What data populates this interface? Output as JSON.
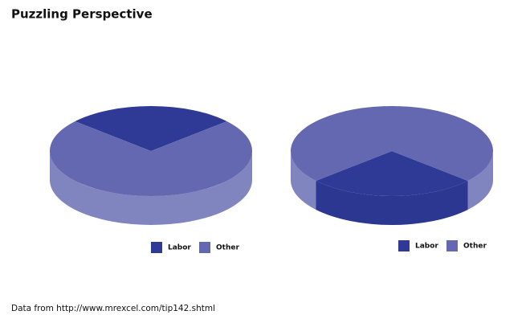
{
  "title": "Puzzling Perspective",
  "source": "Data from http://www.mrexcel.com/tip142.shtml",
  "chart_data": [
    {
      "type": "pie",
      "categories": [
        "Labor",
        "Other"
      ],
      "values": [
        27,
        73
      ],
      "colors": [
        "#2e3a96",
        "#6468b0"
      ],
      "side_colors": [
        "#2b3790",
        "#8185bf"
      ]
    },
    {
      "type": "pie",
      "categories": [
        "Labor",
        "Other"
      ],
      "values": [
        27,
        73
      ],
      "colors": [
        "#2e3a96",
        "#6468b0"
      ],
      "side_colors": [
        "#2b3790",
        "#8185bf"
      ]
    }
  ]
}
